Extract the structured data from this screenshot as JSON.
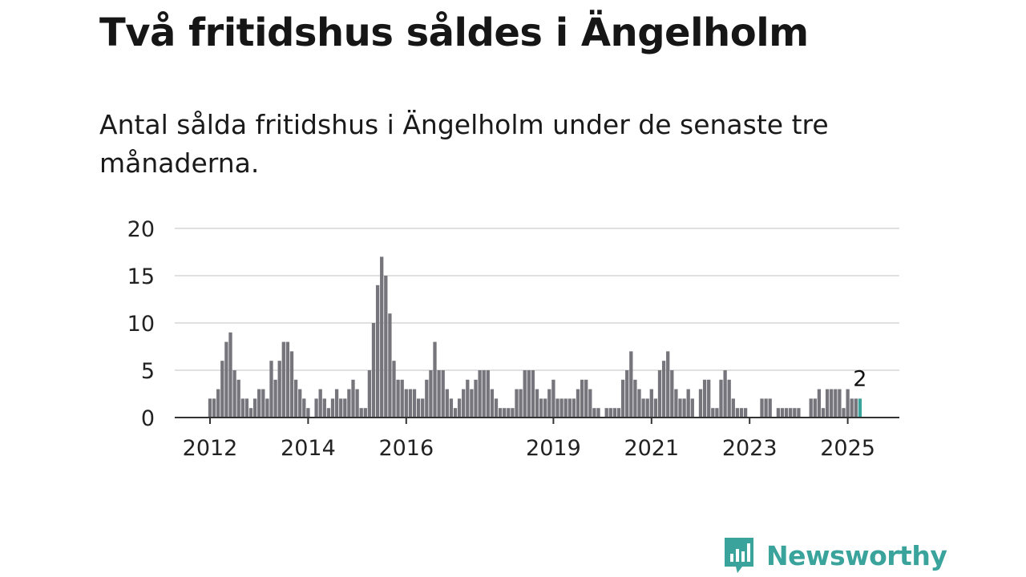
{
  "title": "Två fritidshus såldes i Ängelholm",
  "subtitle": "Antal sålda fritidshus i Ängelholm under de senaste tre månaderna.",
  "brand": {
    "name": "Newsworthy",
    "icon": "newsworthy-logo-icon",
    "color": "#3aa39c"
  },
  "chart_data": {
    "type": "bar",
    "title": "",
    "xlabel": "",
    "ylabel": "",
    "ylim": [
      0,
      20
    ],
    "yticks": [
      0,
      5,
      10,
      15,
      20
    ],
    "xticks": [
      {
        "label": "2012",
        "year": 2012
      },
      {
        "label": "2014",
        "year": 2014
      },
      {
        "label": "2016",
        "year": 2016
      },
      {
        "label": "2019",
        "year": 2019
      },
      {
        "label": "2021",
        "year": 2021
      },
      {
        "label": "2023",
        "year": 2023
      },
      {
        "label": "2025",
        "year": 2025
      }
    ],
    "grid": true,
    "start": "2012-01",
    "frequency": "monthly",
    "bar_color": "#76757c",
    "highlight_color": "#3aa39c",
    "highlight_index": 159,
    "highlight_label": "2",
    "values": [
      2,
      2,
      3,
      6,
      8,
      9,
      5,
      4,
      2,
      2,
      1,
      2,
      3,
      3,
      2,
      6,
      4,
      6,
      8,
      8,
      7,
      4,
      3,
      2,
      1,
      0,
      2,
      3,
      2,
      1,
      2,
      3,
      2,
      2,
      3,
      4,
      3,
      1,
      1,
      5,
      10,
      14,
      17,
      15,
      11,
      6,
      4,
      4,
      3,
      3,
      3,
      2,
      2,
      4,
      5,
      8,
      5,
      5,
      3,
      2,
      1,
      2,
      3,
      4,
      3,
      4,
      5,
      5,
      5,
      3,
      2,
      1,
      1,
      1,
      1,
      3,
      3,
      5,
      5,
      5,
      3,
      2,
      2,
      3,
      4,
      2,
      2,
      2,
      2,
      2,
      3,
      4,
      4,
      3,
      1,
      1,
      0,
      1,
      1,
      1,
      1,
      4,
      5,
      7,
      4,
      3,
      2,
      2,
      3,
      2,
      5,
      6,
      7,
      5,
      3,
      2,
      2,
      3,
      2,
      0,
      3,
      4,
      4,
      1,
      1,
      4,
      5,
      4,
      2,
      1,
      1,
      1,
      0,
      0,
      0,
      2,
      2,
      2,
      0,
      1,
      1,
      1,
      1,
      1,
      1,
      0,
      0,
      2,
      2,
      3,
      1,
      3,
      3,
      3,
      3,
      1,
      3,
      2,
      2,
      2
    ]
  }
}
